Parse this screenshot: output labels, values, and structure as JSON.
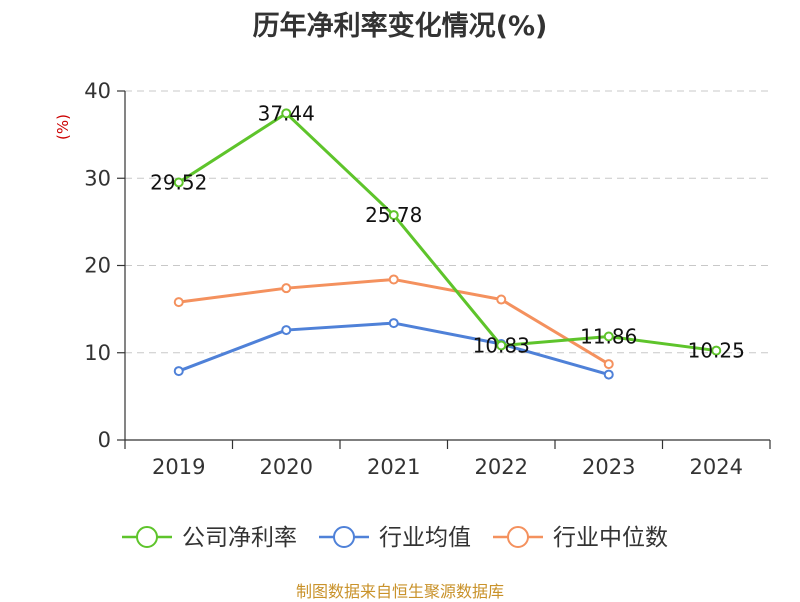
{
  "chart_data": {
    "type": "line",
    "title": "历年净利率变化情况(%)",
    "ylabel": "(%)",
    "ylabel_color": "#cc0000",
    "categories": [
      "2019",
      "2020",
      "2021",
      "2022",
      "2023",
      "2024"
    ],
    "ylim": [
      0,
      40
    ],
    "yticks": [
      0,
      10,
      20,
      30,
      40
    ],
    "grid": true,
    "legend_position": "bottom",
    "series": [
      {
        "name": "公司净利率",
        "color": "#5ec42b",
        "values": [
          29.52,
          37.44,
          25.78,
          10.83,
          11.86,
          10.25
        ],
        "labels": [
          "29.52",
          "37.44",
          "25.78",
          "10.83",
          "11.86",
          "10.25"
        ]
      },
      {
        "name": "行业均值",
        "color": "#4f81d8",
        "values": [
          7.9,
          12.6,
          13.4,
          11.0,
          7.5,
          null
        ],
        "labels": []
      },
      {
        "name": "行业中位数",
        "color": "#f4915e",
        "values": [
          15.8,
          17.4,
          18.4,
          16.1,
          8.7,
          null
        ],
        "labels": []
      }
    ]
  },
  "footer": {
    "source": "制图数据来自恒生聚源数据库"
  }
}
